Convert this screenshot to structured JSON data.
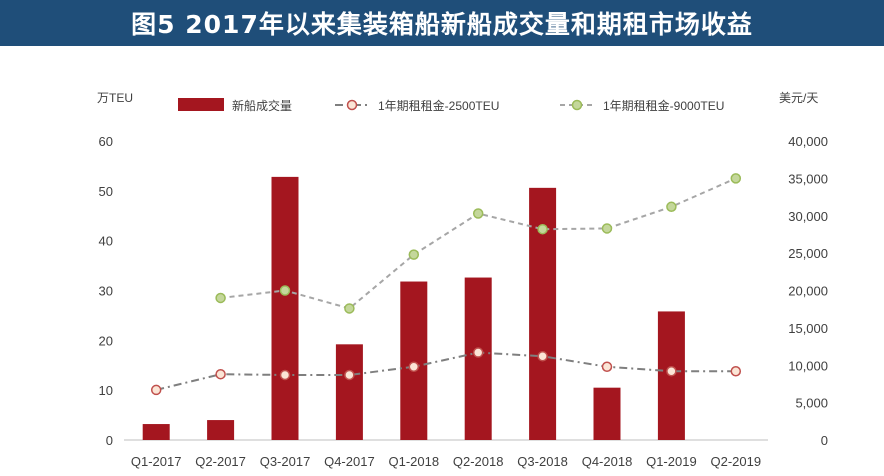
{
  "title": "图5 2017年以来集装箱船新船成交量和期租市场收益",
  "colors": {
    "title_bg": "#1f4e79",
    "bar": "#a4161f",
    "line_2500": "#7f7f7f",
    "marker_2500_fill": "#fbe5d6",
    "marker_2500_stroke": "#c0504d",
    "line_9000": "#a6a6a6",
    "marker_9000_fill": "#c4d79b",
    "marker_9000_stroke": "#9bbb59"
  },
  "chart_data": {
    "type": "bar",
    "categories": [
      "Q1-2017",
      "Q2-2017",
      "Q3-2017",
      "Q4-2017",
      "Q1-2018",
      "Q2-2018",
      "Q3-2018",
      "Q4-2018",
      "Q1-2019",
      "Q2-2019"
    ],
    "left_axis": {
      "unit": "万TEU",
      "ylim": [
        0,
        60
      ],
      "ticks": [
        "0",
        "10",
        "20",
        "30",
        "40",
        "50",
        "60"
      ]
    },
    "right_axis": {
      "unit": "美元/天",
      "ylim": [
        0,
        40000
      ],
      "ticks": [
        "0",
        "5,000",
        "10,000",
        "15,000",
        "20,000",
        "25,000",
        "30,000",
        "35,000",
        "40,000"
      ]
    },
    "legend": [
      "新船成交量",
      "1年期租租金-2500TEU",
      "1年期租租金-9000TEU"
    ],
    "series": [
      {
        "name": "新船成交量",
        "type": "bar",
        "axis": "left",
        "values": [
          3.2,
          4.0,
          52.8,
          19.2,
          31.8,
          32.6,
          50.6,
          10.5,
          25.8,
          null
        ]
      },
      {
        "name": "1年期租租金-2500TEU",
        "type": "line",
        "axis": "right",
        "values": [
          6700,
          8800,
          8700,
          8700,
          9800,
          11700,
          11200,
          9800,
          9200,
          9200
        ]
      },
      {
        "name": "1年期租租金-9000TEU",
        "type": "line",
        "axis": "right",
        "values": [
          null,
          19000,
          20000,
          17600,
          24800,
          30300,
          28200,
          28300,
          31200,
          35000
        ]
      }
    ],
    "grid": false
  }
}
